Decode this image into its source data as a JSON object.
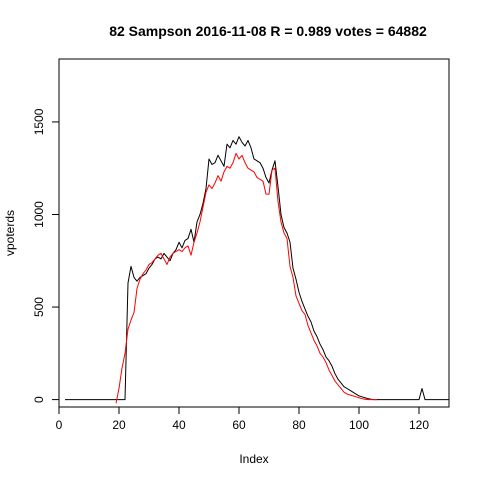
{
  "chart_data": {
    "type": "line",
    "title": "82 Sampson 2016-11-08 R = 0.989 votes = 64882",
    "xlabel": "Index",
    "ylabel": "vpoterds",
    "xlim": [
      0,
      130
    ],
    "ylim": [
      -40,
      1840
    ],
    "x_ticks": [
      0,
      20,
      40,
      60,
      80,
      100,
      120
    ],
    "y_ticks": [
      0,
      500,
      1000,
      1500
    ],
    "grid": false,
    "series": [
      {
        "color": "#000000",
        "x": [
          2,
          21,
          22,
          23,
          24,
          25,
          26,
          27,
          28,
          29,
          30,
          31,
          32,
          33,
          34,
          35,
          36,
          37,
          38,
          39,
          40,
          41,
          42,
          43,
          44,
          45,
          46,
          47,
          48,
          49,
          50,
          51,
          52,
          53,
          54,
          55,
          56,
          57,
          58,
          59,
          60,
          61,
          62,
          63,
          64,
          65,
          66,
          67,
          68,
          69,
          70,
          71,
          72,
          73,
          74,
          75,
          76,
          77,
          78,
          79,
          80,
          81,
          82,
          83,
          84,
          85,
          86,
          87,
          88,
          89,
          90,
          91,
          92,
          93,
          94,
          95,
          96,
          97,
          98,
          99,
          100,
          101,
          102,
          103,
          104,
          105,
          106,
          107,
          108,
          109,
          110,
          111,
          112,
          113,
          114,
          115,
          116,
          117,
          118,
          119,
          120,
          121,
          122,
          123,
          124,
          125,
          126,
          127,
          128,
          129,
          130
        ],
        "y": [
          0,
          0,
          0,
          630,
          720,
          660,
          640,
          660,
          670,
          680,
          710,
          730,
          760,
          770,
          760,
          790,
          770,
          750,
          790,
          810,
          850,
          820,
          860,
          870,
          920,
          850,
          960,
          1000,
          1060,
          1140,
          1300,
          1270,
          1280,
          1320,
          1290,
          1260,
          1380,
          1360,
          1400,
          1380,
          1420,
          1390,
          1370,
          1400,
          1360,
          1300,
          1290,
          1280,
          1250,
          1200,
          1170,
          1240,
          1290,
          1150,
          1000,
          930,
          900,
          850,
          710,
          650,
          580,
          530,
          490,
          450,
          420,
          370,
          340,
          300,
          270,
          230,
          210,
          180,
          140,
          110,
          90,
          70,
          60,
          50,
          40,
          30,
          20,
          15,
          10,
          5,
          2,
          0,
          0,
          0,
          0,
          0,
          0,
          0,
          0,
          0,
          0,
          0,
          0,
          0,
          0,
          0,
          0,
          60,
          0,
          0,
          0,
          0,
          0,
          0,
          0,
          0,
          0
        ]
      },
      {
        "color": "#ff0000",
        "x": [
          19,
          20,
          21,
          22,
          23,
          24,
          25,
          26,
          27,
          28,
          29,
          30,
          31,
          32,
          33,
          34,
          35,
          36,
          37,
          38,
          39,
          40,
          41,
          42,
          43,
          44,
          45,
          46,
          47,
          48,
          49,
          50,
          51,
          52,
          53,
          54,
          55,
          56,
          57,
          58,
          59,
          60,
          61,
          62,
          63,
          64,
          65,
          66,
          67,
          68,
          69,
          70,
          71,
          72,
          73,
          74,
          75,
          76,
          77,
          78,
          79,
          80,
          81,
          82,
          83,
          84,
          85,
          86,
          87,
          88,
          89,
          90,
          91,
          92,
          93,
          94,
          95,
          96,
          97,
          98,
          99,
          100,
          101,
          102,
          103,
          104,
          105,
          106
        ],
        "y": [
          -20,
          60,
          170,
          250,
          380,
          430,
          470,
          600,
          650,
          680,
          700,
          730,
          740,
          760,
          780,
          790,
          760,
          730,
          770,
          790,
          800,
          810,
          800,
          820,
          830,
          780,
          850,
          900,
          960,
          1040,
          1120,
          1160,
          1140,
          1170,
          1210,
          1180,
          1230,
          1260,
          1250,
          1280,
          1330,
          1300,
          1320,
          1280,
          1250,
          1240,
          1230,
          1200,
          1190,
          1180,
          1110,
          1110,
          1240,
          1250,
          1070,
          960,
          900,
          870,
          720,
          660,
          560,
          520,
          480,
          460,
          400,
          360,
          320,
          290,
          250,
          230,
          200,
          160,
          130,
          100,
          80,
          60,
          40,
          30,
          25,
          20,
          15,
          10,
          5,
          2,
          0,
          0,
          0,
          0
        ]
      }
    ]
  }
}
